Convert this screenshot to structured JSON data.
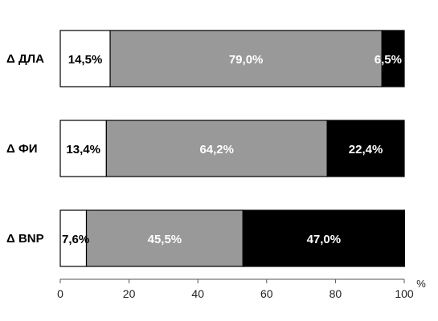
{
  "chart_data": {
    "type": "bar",
    "orientation": "horizontal",
    "stacked": true,
    "categories": [
      "Δ ДЛА",
      "Δ ФИ",
      "Δ BNP"
    ],
    "series": [
      {
        "values": [
          14.5,
          13.4,
          7.6
        ],
        "labels": [
          "14,5%",
          "13,4%",
          "7,6%"
        ],
        "color": "#ffffff",
        "label_color": "#000000"
      },
      {
        "values": [
          79.0,
          64.2,
          45.5
        ],
        "labels": [
          "79,0%",
          "64,2%",
          "45,5%"
        ],
        "color": "#999999",
        "label_color": "#ffffff"
      },
      {
        "values": [
          6.5,
          22.4,
          47.0
        ],
        "labels": [
          "6,5%",
          "22,4%",
          "47,0%"
        ],
        "color": "#000000",
        "label_color": "#ffffff"
      }
    ],
    "xlim": [
      0,
      100
    ],
    "xticks": [
      0,
      20,
      40,
      60,
      80,
      100
    ],
    "xticklabels": [
      "0",
      "20",
      "40",
      "60",
      "80",
      "100"
    ],
    "xunit": "%",
    "grid": false,
    "legend": "none"
  }
}
